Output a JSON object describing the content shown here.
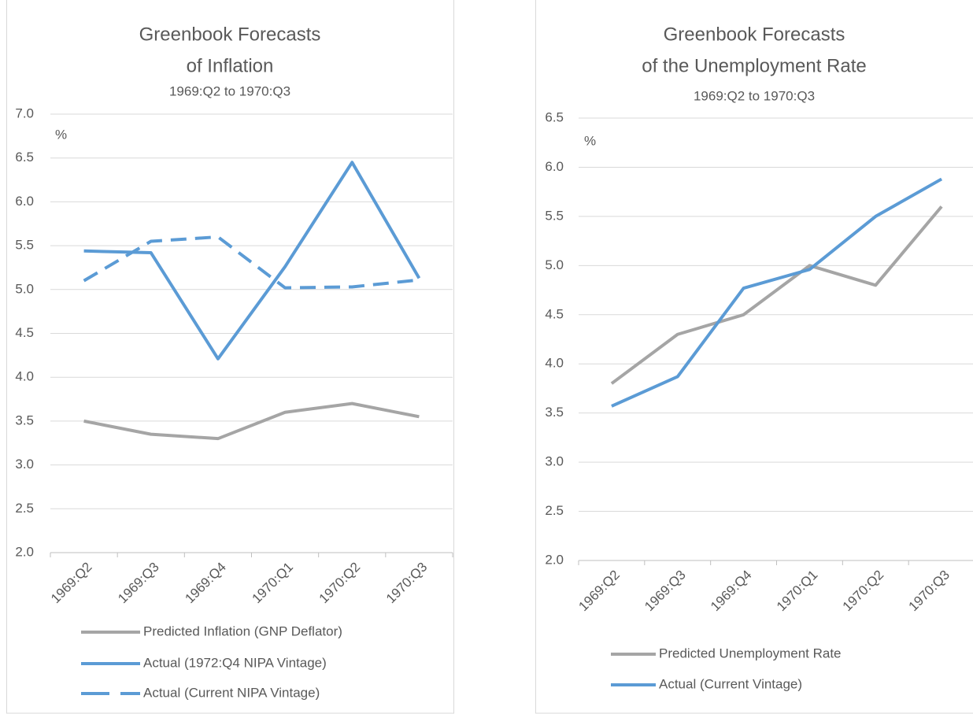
{
  "chart_data": [
    {
      "type": "line",
      "title": [
        "Greenbook Forecasts",
        "of Inflation"
      ],
      "subtitle": "1969:Q2 to 1970:Q3",
      "y_unit": "%",
      "categories": [
        "1969:Q2",
        "1969:Q3",
        "1969:Q4",
        "1970:Q1",
        "1970:Q2",
        "1970:Q3"
      ],
      "series": [
        {
          "name": "Predicted Inflation (GNP Deflator)",
          "color": "#a5a5a5",
          "dashed": false,
          "values": [
            3.5,
            3.35,
            3.3,
            3.6,
            3.7,
            3.55
          ]
        },
        {
          "name": "Actual (1972:Q4 NIPA Vintage)",
          "color": "#5b9bd5",
          "dashed": false,
          "values": [
            5.44,
            5.42,
            4.21,
            5.26,
            6.45,
            5.13
          ]
        },
        {
          "name": "Actual (Current NIPA Vintage)",
          "color": "#5b9bd5",
          "dashed": true,
          "values": [
            5.1,
            5.55,
            5.6,
            5.02,
            5.03,
            5.11
          ]
        }
      ],
      "ylim": [
        2.0,
        7.0
      ],
      "yticks": [
        {
          "value": 2,
          "label": "2.0"
        },
        2.5,
        {
          "value": 3,
          "label": "3.0"
        },
        3.5,
        {
          "value": 4,
          "label": "4.0"
        },
        4.5,
        {
          "value": 5,
          "label": "5.0"
        },
        5.5,
        {
          "value": 6,
          "label": "6.0"
        },
        6.5,
        {
          "value": 7,
          "label": "7.0"
        }
      ],
      "grid": true,
      "legend": "bottom"
    },
    {
      "type": "line",
      "title": [
        "Greenbook Forecasts",
        "of the Unemployment Rate"
      ],
      "subtitle": "1969:Q2 to 1970:Q3",
      "y_unit": "%",
      "categories": [
        "1969:Q2",
        "1969:Q3",
        "1969:Q4",
        "1970:Q1",
        "1970:Q2",
        "1970:Q3"
      ],
      "series": [
        {
          "name": "Predicted Unemployment Rate",
          "color": "#a5a5a5",
          "dashed": false,
          "values": [
            3.8,
            4.3,
            4.5,
            5.0,
            4.8,
            5.6
          ]
        },
        {
          "name": "Actual (Current Vintage)",
          "color": "#5b9bd5",
          "dashed": false,
          "values": [
            3.57,
            3.87,
            4.77,
            4.96,
            5.5,
            5.88
          ]
        }
      ],
      "ylim": [
        2.0,
        6.5
      ],
      "yticks": [
        {
          "value": 2,
          "label": "2.0"
        },
        2.5,
        {
          "value": 3,
          "label": "3.0"
        },
        3.5,
        {
          "value": 4,
          "label": "4.0"
        },
        4.5,
        {
          "value": 5,
          "label": "5.0"
        },
        5.5,
        {
          "value": 6,
          "label": "6.0"
        },
        6.5
      ],
      "grid": true,
      "legend": "bottom"
    }
  ]
}
